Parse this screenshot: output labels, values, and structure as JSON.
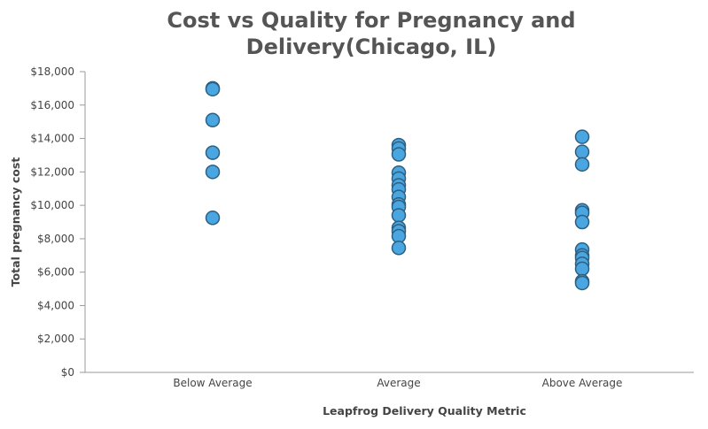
{
  "chart_data": {
    "type": "scatter",
    "title_lines": [
      "Cost vs Quality for Pregnancy and",
      "Delivery(Chicago, IL)"
    ],
    "xlabel": "Leapfrog Delivery Quality Metric",
    "ylabel": "Total pregnancy cost",
    "categories": [
      "Below Average",
      "Average",
      "Above Average"
    ],
    "ylim": [
      0,
      18000
    ],
    "yticks": [
      {
        "value": 0,
        "label": "$0"
      },
      {
        "value": 2000,
        "label": "$2,000"
      },
      {
        "value": 4000,
        "label": "$4,000"
      },
      {
        "value": 6000,
        "label": "$6,000"
      },
      {
        "value": 8000,
        "label": "$8,000"
      },
      {
        "value": 10000,
        "label": "$10,000"
      },
      {
        "value": 12000,
        "label": "$12,000"
      },
      {
        "value": 14000,
        "label": "$14,000"
      },
      {
        "value": 16000,
        "label": "$16,000"
      },
      {
        "value": 18000,
        "label": "$18,000"
      }
    ],
    "grid": false,
    "legend": "none",
    "marker_color": "#4aa6e0",
    "marker_edge_color": "#2f5f80",
    "points": [
      {
        "category": "Below Average",
        "y": 17000
      },
      {
        "category": "Below Average",
        "y": 16950
      },
      {
        "category": "Below Average",
        "y": 15100
      },
      {
        "category": "Below Average",
        "y": 13150
      },
      {
        "category": "Below Average",
        "y": 12000
      },
      {
        "category": "Below Average",
        "y": 9250
      },
      {
        "category": "Average",
        "y": 13600
      },
      {
        "category": "Average",
        "y": 13400
      },
      {
        "category": "Average",
        "y": 13050
      },
      {
        "category": "Average",
        "y": 11950
      },
      {
        "category": "Average",
        "y": 11600
      },
      {
        "category": "Average",
        "y": 11200
      },
      {
        "category": "Average",
        "y": 10950
      },
      {
        "category": "Average",
        "y": 10500
      },
      {
        "category": "Average",
        "y": 10050
      },
      {
        "category": "Average",
        "y": 9900
      },
      {
        "category": "Average",
        "y": 9400
      },
      {
        "category": "Average",
        "y": 8650
      },
      {
        "category": "Average",
        "y": 8450
      },
      {
        "category": "Average",
        "y": 8150
      },
      {
        "category": "Average",
        "y": 7450
      },
      {
        "category": "Above Average",
        "y": 14100
      },
      {
        "category": "Above Average",
        "y": 13200
      },
      {
        "category": "Above Average",
        "y": 12450
      },
      {
        "category": "Above Average",
        "y": 9700
      },
      {
        "category": "Above Average",
        "y": 9550
      },
      {
        "category": "Above Average",
        "y": 9000
      },
      {
        "category": "Above Average",
        "y": 7350
      },
      {
        "category": "Above Average",
        "y": 7000
      },
      {
        "category": "Above Average",
        "y": 6850
      },
      {
        "category": "Above Average",
        "y": 6500
      },
      {
        "category": "Above Average",
        "y": 6200
      },
      {
        "category": "Above Average",
        "y": 5450
      },
      {
        "category": "Above Average",
        "y": 5350
      }
    ]
  }
}
